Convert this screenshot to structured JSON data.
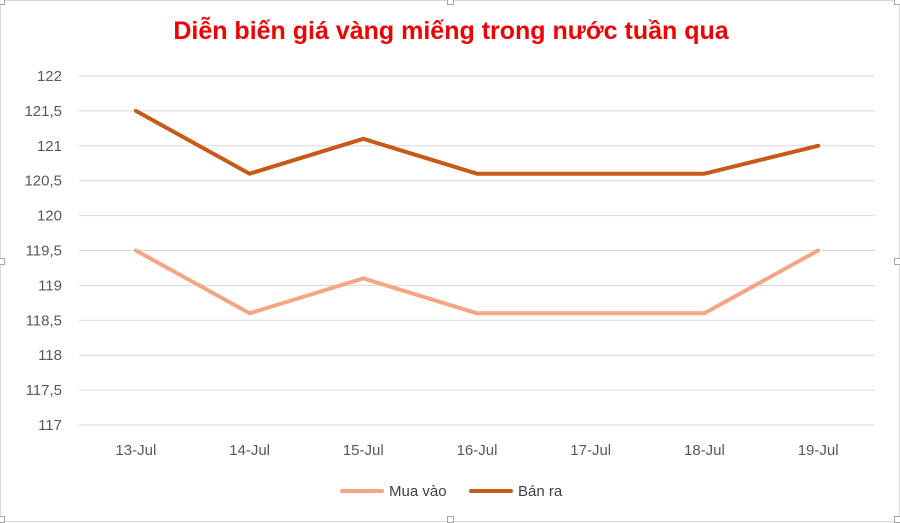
{
  "chart_data": {
    "type": "line",
    "title": "Diễn biến giá vàng miếng trong nước tuần qua",
    "categories": [
      "13-Jul",
      "14-Jul",
      "15-Jul",
      "16-Jul",
      "17-Jul",
      "18-Jul",
      "19-Jul"
    ],
    "series": [
      {
        "name": "Mua vào",
        "color": "#f4a582",
        "values": [
          119.5,
          118.6,
          119.1,
          118.6,
          118.6,
          118.6,
          119.5
        ]
      },
      {
        "name": "Bán ra",
        "color": "#c65a16",
        "values": [
          121.5,
          120.6,
          121.1,
          120.6,
          120.6,
          120.6,
          121.0
        ]
      }
    ],
    "ylim": [
      117,
      122
    ],
    "yticks": [
      "117",
      "117,5",
      "118",
      "118,5",
      "119",
      "119,5",
      "120",
      "120,5",
      "121",
      "121,5",
      "122"
    ],
    "grid": true,
    "legend_position": "bottom",
    "colors": {
      "title": "#ee0000",
      "grid": "#d9d9d9",
      "tick_text": "#595959"
    }
  }
}
